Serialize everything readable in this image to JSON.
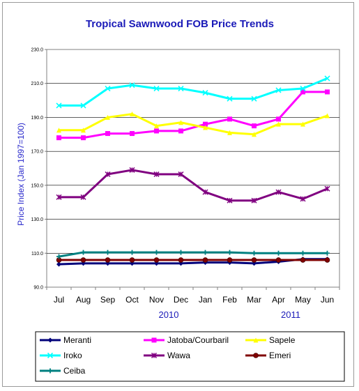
{
  "chart_data": {
    "type": "line",
    "title": "Tropical Sawnwood FOB Price Trends",
    "ylabel": "Price Index  (Jan 1997=100)",
    "xlabel": "",
    "ylim": [
      90,
      230
    ],
    "yticks": [
      "90.0",
      "110.0",
      "130.0",
      "150.0",
      "170.0",
      "190.0",
      "210.0",
      "230.0"
    ],
    "categories": [
      "Jul",
      "Aug",
      "Sep",
      "Oct",
      "Nov",
      "Dec",
      "Jan",
      "Feb",
      "Mar",
      "Apr",
      "May",
      "Jun"
    ],
    "year_labels": [
      {
        "text": "2010",
        "category": "Nov"
      },
      {
        "text": "2011",
        "category": "Apr"
      }
    ],
    "grid": true,
    "legend_position": "bottom",
    "series": [
      {
        "name": "Meranti",
        "color": "#00007a",
        "marker": "diamond",
        "values": [
          103.5,
          104,
          104,
          104,
          104,
          104,
          104.5,
          104.5,
          104,
          105,
          106.5,
          106.5
        ]
      },
      {
        "name": "Jatoba/Courbaril",
        "color": "#ff00ff",
        "marker": "square",
        "values": [
          178,
          178,
          180.5,
          180.5,
          182,
          182,
          186,
          189,
          185,
          189,
          205,
          205
        ]
      },
      {
        "name": "Sapele",
        "color": "#ffff00",
        "marker": "triangle",
        "values": [
          182.5,
          182.5,
          190,
          192,
          185,
          187,
          184,
          181,
          180,
          186,
          186,
          191
        ]
      },
      {
        "name": "Iroko",
        "color": "#00ffff",
        "marker": "x",
        "values": [
          197,
          197,
          207,
          209,
          207,
          207,
          204.5,
          201,
          201,
          206,
          207,
          213
        ]
      },
      {
        "name": "Wawa",
        "color": "#800080",
        "marker": "star",
        "values": [
          143,
          143,
          156.5,
          159,
          156.5,
          156.5,
          146,
          141,
          141,
          146,
          142,
          148
        ]
      },
      {
        "name": "Emeri",
        "color": "#800000",
        "marker": "circle",
        "values": [
          106,
          106,
          106,
          106,
          106,
          106,
          106,
          106,
          106,
          106,
          106,
          106
        ]
      },
      {
        "name": "Ceiba",
        "color": "#008080",
        "marker": "plus",
        "values": [
          108,
          110.5,
          110.5,
          110.5,
          110.5,
          110.5,
          110.5,
          110.5,
          110,
          110,
          110,
          110
        ]
      }
    ]
  }
}
